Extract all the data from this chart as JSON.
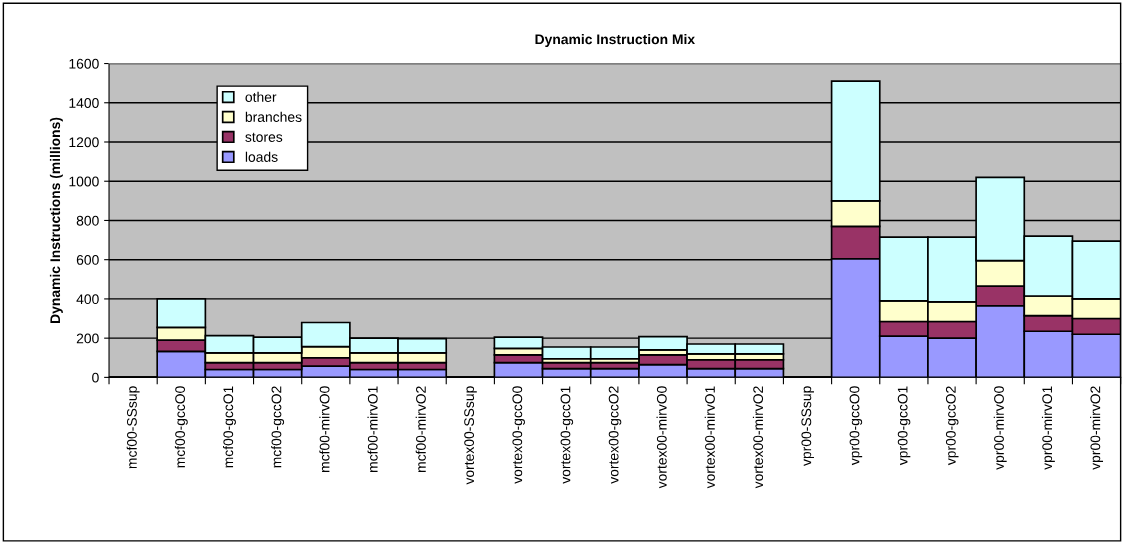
{
  "chart_data": {
    "type": "bar",
    "title": "Dynamic Instruction Mix",
    "ylabel": "Dynamic Instructions (millions)",
    "categories": [
      "mcf00-SSsup",
      "mcf00-gccO0",
      "mcf00-gccO1",
      "mcf00-gccO2",
      "mcf00-mirvO0",
      "mcf00-mirvO1",
      "mcf00-mirvO2",
      "vortex00-SSsup",
      "vortex00-gccO0",
      "vortex00-gccO1",
      "vortex00-gccO2",
      "vortex00-mirvO0",
      "vortex00-mirvO1",
      "vortex00-mirvO2",
      "vpr00-SSsup",
      "vpr00-gccO0",
      "vpr00-gccO1",
      "vpr00-gccO2",
      "vpr00-mirvO0",
      "vpr00-mirvO1",
      "vpr00-mirvO2"
    ],
    "stacked": true,
    "series": [
      {
        "name": "loads",
        "color": "#9999ff",
        "values": [
          null,
          133,
          40,
          40,
          57,
          40,
          40,
          null,
          75,
          45,
          45,
          65,
          45,
          45,
          null,
          605,
          210,
          200,
          365,
          235,
          220
        ]
      },
      {
        "name": "stores",
        "color": "#993366",
        "values": [
          null,
          57,
          35,
          35,
          43,
          35,
          35,
          null,
          40,
          30,
          30,
          50,
          45,
          45,
          null,
          165,
          75,
          85,
          100,
          80,
          80
        ]
      },
      {
        "name": "branches",
        "color": "#ffffcc",
        "values": [
          null,
          65,
          50,
          50,
          57,
          50,
          50,
          null,
          33,
          20,
          20,
          25,
          30,
          30,
          null,
          130,
          105,
          100,
          130,
          100,
          100
        ]
      },
      {
        "name": "other",
        "color": "#ccffff",
        "values": [
          null,
          145,
          88,
          80,
          123,
          75,
          73,
          null,
          57,
          60,
          60,
          68,
          50,
          50,
          null,
          610,
          325,
          330,
          425,
          305,
          295
        ]
      }
    ],
    "ylim": [
      0,
      1600
    ],
    "yticks": [
      0,
      200,
      400,
      600,
      800,
      1000,
      1200,
      1400,
      1600
    ],
    "grid": "y",
    "legend": "top left"
  }
}
